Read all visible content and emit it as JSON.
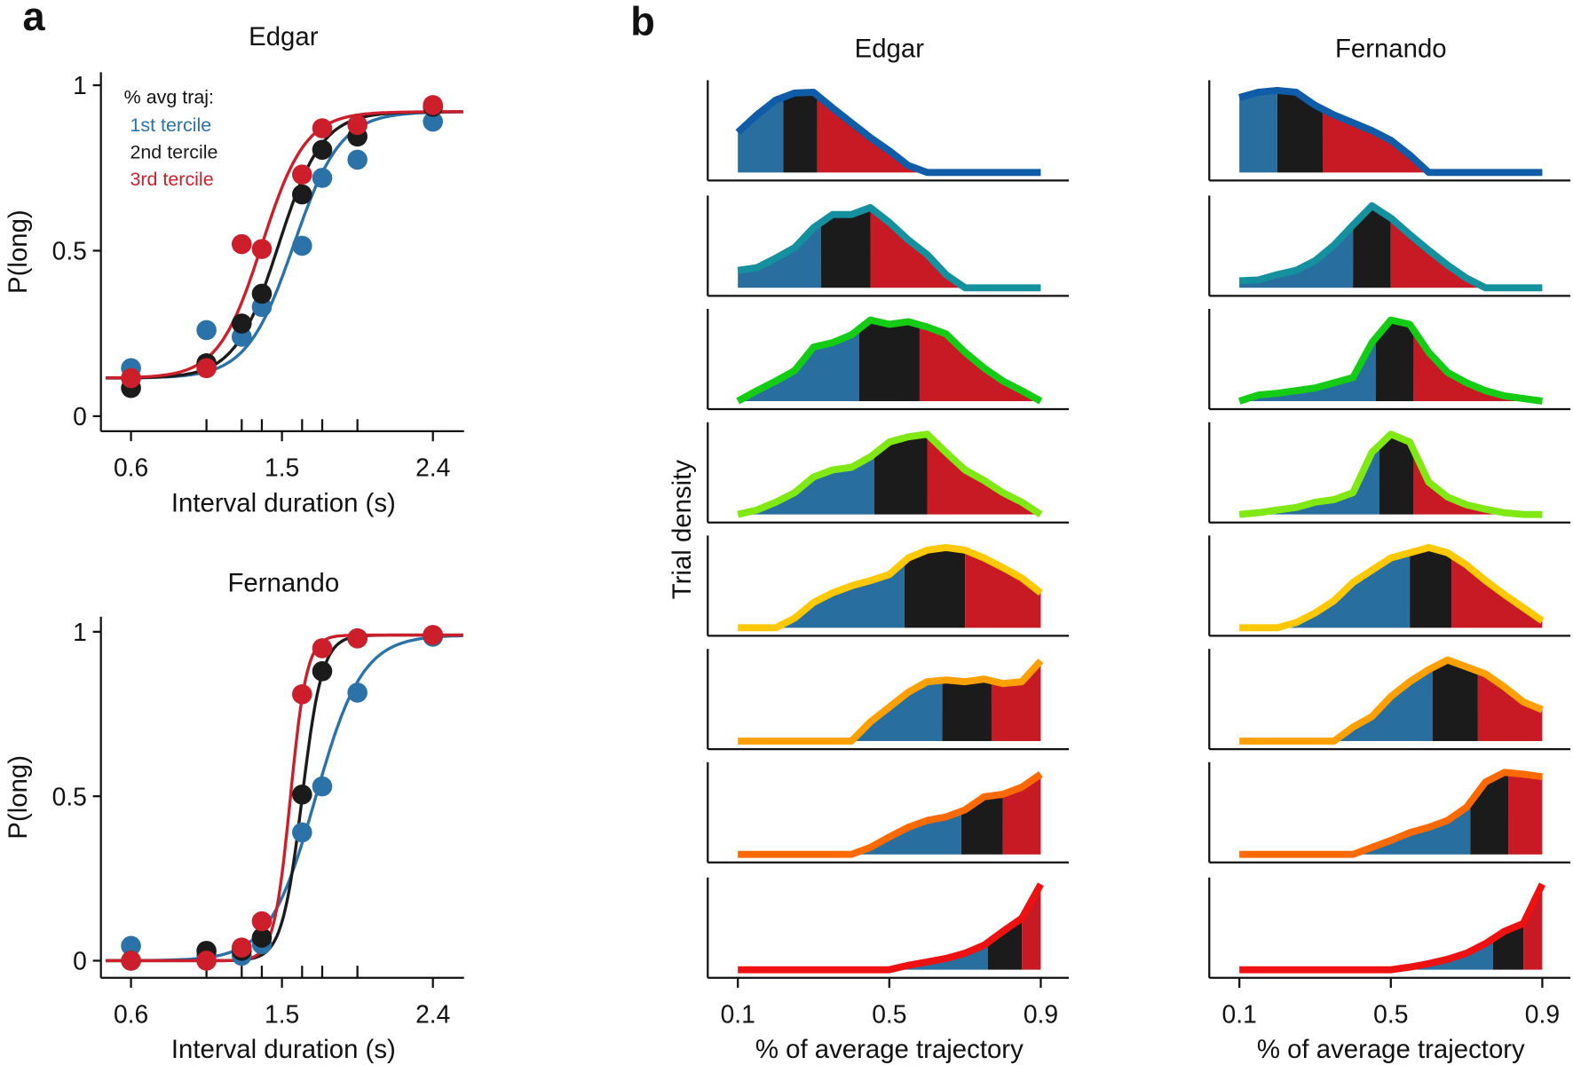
{
  "panel_labels": {
    "a": "a",
    "b": "b"
  },
  "colors": {
    "tercile1": "#2a72a8",
    "tercile2": "#1b1b1b",
    "tercile3": "#cc1f2b",
    "fill1": "#286e9f",
    "fill2": "#1b1b1b",
    "fill3": "#c81a24",
    "rows": [
      "#0f5ca8",
      "#14909e",
      "#14cc14",
      "#80e812",
      "#ffc800",
      "#ffa000",
      "#ff6a00",
      "#ee1111"
    ]
  },
  "legend": {
    "title": "% avg traj:",
    "items": [
      "1st tercile",
      "2nd tercile",
      "3rd tercile"
    ]
  },
  "chart_data": [
    {
      "panel": "a",
      "type": "line",
      "xlabel": "Interval duration (s)",
      "ylabel": "P(long)",
      "xticks": [
        "0.6",
        "1.5",
        "2.4"
      ],
      "xtick_values": [
        0.6,
        1.5,
        2.4
      ],
      "minor_xticks": [
        1.05,
        1.26,
        1.38,
        1.62,
        1.74,
        1.95
      ],
      "yticks": [
        "0",
        "0.5",
        "1"
      ],
      "ytick_values": [
        0,
        0.5,
        1
      ],
      "xlim": [
        0.42,
        2.58
      ],
      "ylim": [
        -0.045,
        1.01
      ],
      "legend_position": "top-left",
      "x": [
        0.6,
        1.05,
        1.26,
        1.38,
        1.62,
        1.74,
        1.95,
        2.4
      ],
      "subplots": [
        {
          "title": "Edgar",
          "series": [
            {
              "name": "1st tercile",
              "values": [
                0.145,
                0.26,
                0.24,
                0.33,
                0.515,
                0.72,
                0.775,
                0.89
              ],
              "fit": {
                "guess": 0.115,
                "top": 0.92,
                "mu": 1.57,
                "sigma": 0.14
              }
            },
            {
              "name": "2nd tercile",
              "values": [
                0.085,
                0.16,
                0.28,
                0.37,
                0.67,
                0.805,
                0.845,
                0.935
              ],
              "fit": {
                "guess": 0.115,
                "top": 0.92,
                "mu": 1.48,
                "sigma": 0.13
              }
            },
            {
              "name": "3rd tercile",
              "values": [
                0.115,
                0.145,
                0.52,
                0.505,
                0.73,
                0.87,
                0.88,
                0.94
              ],
              "fit": {
                "guess": 0.115,
                "top": 0.92,
                "mu": 1.38,
                "sigma": 0.13
              }
            }
          ]
        },
        {
          "title": "Fernando",
          "series": [
            {
              "name": "1st tercile",
              "values": [
                0.045,
                0.015,
                0.015,
                0.05,
                0.39,
                0.53,
                0.815,
                0.985
              ],
              "fit": {
                "guess": 0.0,
                "top": 0.99,
                "mu": 1.7,
                "sigma": 0.14
              }
            },
            {
              "name": "2nd tercile",
              "values": [
                0.0,
                0.03,
                0.03,
                0.07,
                0.505,
                0.88,
                0.98,
                0.99
              ],
              "fit": {
                "guess": 0.0,
                "top": 0.99,
                "mu": 1.62,
                "sigma": 0.06
              }
            },
            {
              "name": "3rd tercile",
              "values": [
                0.0,
                0.0,
                0.04,
                0.12,
                0.81,
                0.95,
                0.98,
                0.99
              ],
              "fit": {
                "guess": 0.0,
                "top": 0.99,
                "mu": 1.55,
                "sigma": 0.049
              }
            }
          ]
        }
      ]
    },
    {
      "panel": "b",
      "type": "area",
      "xlabel": "% of average trajectory",
      "ylabel": "Trial density",
      "xticks": [
        "0.1",
        "0.5",
        "0.9"
      ],
      "xtick_values": [
        0.1,
        0.5,
        0.9
      ],
      "xlim": [
        0.02,
        0.98
      ],
      "x": [
        0.1,
        0.15,
        0.2,
        0.25,
        0.3,
        0.35,
        0.4,
        0.45,
        0.5,
        0.55,
        0.6,
        0.65,
        0.7,
        0.75,
        0.8,
        0.85,
        0.9
      ],
      "columns": [
        {
          "title": "Edgar",
          "rows": [
            {
              "density": [
                0.46,
                0.66,
                0.83,
                0.91,
                0.92,
                0.74,
                0.57,
                0.4,
                0.25,
                0.08,
                0,
                0,
                0,
                0,
                0,
                0,
                0
              ],
              "tercile_bounds": [
                0.22,
                0.31
              ]
            },
            {
              "density": [
                0.2,
                0.23,
                0.34,
                0.46,
                0.69,
                0.84,
                0.84,
                0.92,
                0.75,
                0.55,
                0.38,
                0.15,
                0,
                0,
                0,
                0,
                0
              ],
              "tercile_bounds": [
                0.32,
                0.45
              ]
            },
            {
              "density": [
                0,
                0.12,
                0.23,
                0.35,
                0.62,
                0.67,
                0.76,
                0.93,
                0.88,
                0.91,
                0.85,
                0.77,
                0.56,
                0.38,
                0.23,
                0.12,
                0
              ],
              "tercile_bounds": [
                0.42,
                0.58
              ]
            },
            {
              "density": [
                0,
                0.05,
                0.14,
                0.25,
                0.43,
                0.51,
                0.54,
                0.66,
                0.83,
                0.89,
                0.92,
                0.71,
                0.51,
                0.39,
                0.25,
                0.14,
                0
              ],
              "tercile_bounds": [
                0.46,
                0.6
              ]
            },
            {
              "density": [
                0,
                0,
                0,
                0.11,
                0.29,
                0.4,
                0.48,
                0.54,
                0.61,
                0.8,
                0.89,
                0.92,
                0.89,
                0.8,
                0.69,
                0.57,
                0.4
              ],
              "tercile_bounds": [
                0.54,
                0.7
              ]
            },
            {
              "density": [
                0,
                0,
                0,
                0,
                0,
                0,
                0,
                0.22,
                0.39,
                0.56,
                0.68,
                0.7,
                0.68,
                0.71,
                0.66,
                0.68,
                0.92
              ],
              "tercile_bounds": [
                0.64,
                0.77
              ]
            },
            {
              "density": [
                0,
                0,
                0,
                0,
                0,
                0,
                0,
                0.08,
                0.2,
                0.31,
                0.39,
                0.43,
                0.51,
                0.66,
                0.69,
                0.77,
                0.92
              ],
              "tercile_bounds": [
                0.69,
                0.8
              ]
            },
            {
              "density": [
                0,
                0,
                0,
                0,
                0,
                0,
                0,
                0,
                0,
                0.05,
                0.09,
                0.13,
                0.19,
                0.28,
                0.44,
                0.59,
                0.98
              ],
              "tercile_bounds": [
                0.76,
                0.85
              ]
            }
          ]
        },
        {
          "title": "Fernando",
          "rows": [
            {
              "density": [
                0.86,
                0.92,
                0.94,
                0.92,
                0.77,
                0.66,
                0.57,
                0.48,
                0.37,
                0.2,
                0,
                0,
                0,
                0,
                0,
                0,
                0
              ],
              "tercile_bounds": [
                0.2,
                0.32
              ]
            },
            {
              "density": [
                0.08,
                0.09,
                0.15,
                0.2,
                0.31,
                0.49,
                0.72,
                0.94,
                0.8,
                0.61,
                0.43,
                0.26,
                0.11,
                0,
                0,
                0,
                0
              ],
              "tercile_bounds": [
                0.4,
                0.5
              ]
            },
            {
              "density": [
                0,
                0.07,
                0.09,
                0.12,
                0.15,
                0.21,
                0.27,
                0.67,
                0.93,
                0.88,
                0.56,
                0.33,
                0.21,
                0.12,
                0.06,
                0.03,
                0
              ],
              "tercile_bounds": [
                0.46,
                0.56
              ]
            },
            {
              "density": [
                0,
                0.02,
                0.05,
                0.08,
                0.14,
                0.17,
                0.25,
                0.71,
                0.92,
                0.83,
                0.37,
                0.2,
                0.11,
                0.06,
                0.02,
                0,
                0
              ],
              "tercile_bounds": [
                0.47,
                0.56
              ]
            },
            {
              "density": [
                0,
                0,
                0,
                0.06,
                0.17,
                0.31,
                0.52,
                0.66,
                0.8,
                0.86,
                0.92,
                0.86,
                0.72,
                0.54,
                0.38,
                0.23,
                0.08
              ],
              "tercile_bounds": [
                0.55,
                0.66
              ]
            },
            {
              "density": [
                0,
                0,
                0,
                0,
                0,
                0,
                0.16,
                0.28,
                0.51,
                0.68,
                0.82,
                0.93,
                0.85,
                0.77,
                0.62,
                0.45,
                0.36
              ],
              "tercile_bounds": [
                0.61,
                0.73
              ]
            },
            {
              "density": [
                0,
                0,
                0,
                0,
                0,
                0,
                0,
                0.08,
                0.16,
                0.25,
                0.31,
                0.39,
                0.54,
                0.83,
                0.94,
                0.92,
                0.89
              ],
              "tercile_bounds": [
                0.71,
                0.81
              ]
            },
            {
              "density": [
                0,
                0,
                0,
                0,
                0,
                0,
                0,
                0,
                0,
                0.03,
                0.07,
                0.12,
                0.19,
                0.3,
                0.44,
                0.53,
                0.98
              ],
              "tercile_bounds": [
                0.77,
                0.85
              ]
            }
          ]
        }
      ]
    }
  ]
}
